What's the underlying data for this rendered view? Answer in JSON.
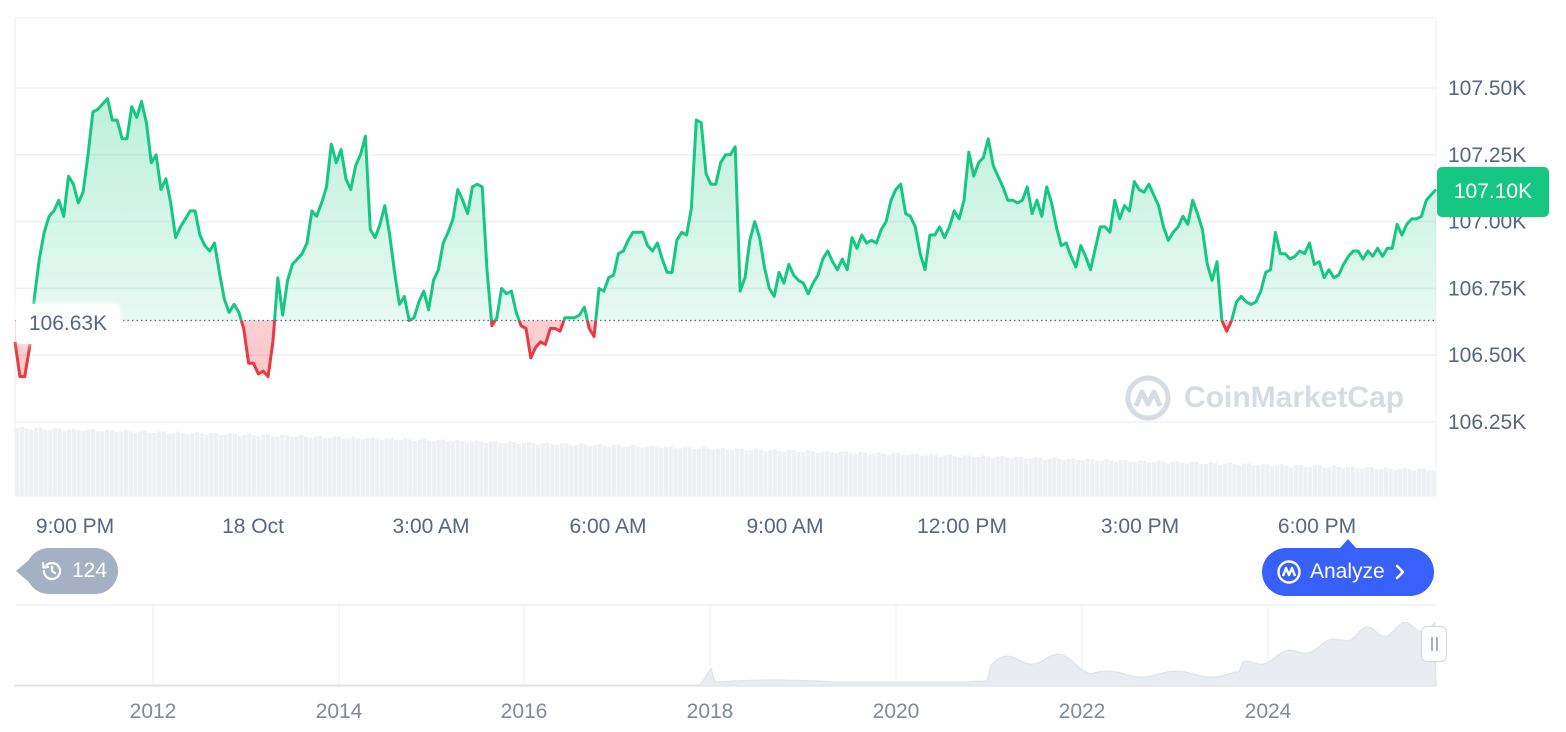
{
  "chart_data": {
    "type": "area",
    "title": "",
    "xlabel": "",
    "ylabel": "",
    "ylim": [
      106.15,
      107.75
    ],
    "y_ticks": [
      "107.50K",
      "107.25K",
      "107.00K",
      "106.75K",
      "106.50K",
      "106.25K"
    ],
    "y_tick_values": [
      107.5,
      107.25,
      107.0,
      106.75,
      106.5,
      106.25
    ],
    "x_ticks": [
      "9:00 PM",
      "18 Oct",
      "3:00 AM",
      "6:00 AM",
      "9:00 AM",
      "12:00 PM",
      "3:00 PM",
      "6:00 PM"
    ],
    "reference_price": 106.63,
    "reference_label": "106.63K",
    "current_price": 107.1,
    "current_label": "107.10K",
    "colors": {
      "up": "#16c784",
      "down": "#ea3943",
      "grid": "#eff2f5",
      "badge": "#16c784"
    },
    "grid": true,
    "volume_bars": "light gray histogram under price, slowly decreasing",
    "series": [
      {
        "values": [
          106.55,
          106.42,
          106.42,
          106.53,
          106.72,
          106.86,
          106.96,
          107.02,
          107.04,
          107.08,
          107.02,
          107.17,
          107.14,
          107.07,
          107.11,
          107.25,
          107.41,
          107.42,
          107.44,
          107.46,
          107.38,
          107.38,
          107.31,
          107.31,
          107.43,
          107.39,
          107.45,
          107.37,
          107.22,
          107.25,
          107.12,
          107.16,
          107.07,
          106.94,
          106.98,
          107.01,
          107.04,
          107.04,
          106.95,
          106.91,
          106.89,
          106.92,
          106.81,
          106.71,
          106.66,
          106.69,
          106.66,
          106.6,
          106.47,
          106.47,
          106.43,
          106.44,
          106.42,
          106.55,
          106.79,
          106.65,
          106.78,
          106.84,
          106.86,
          106.88,
          106.92,
          107.04,
          107.02,
          107.07,
          107.13,
          107.29,
          107.22,
          107.27,
          107.16,
          107.12,
          107.21,
          107.25,
          107.32,
          106.97,
          106.94,
          106.99,
          107.06,
          106.95,
          106.81,
          106.69,
          106.72,
          106.63,
          106.64,
          106.7,
          106.74,
          106.67,
          106.78,
          106.82,
          106.92,
          106.96,
          107.01,
          107.12,
          107.08,
          107.03,
          107.13,
          107.14,
          107.13,
          106.82,
          106.61,
          106.64,
          106.75,
          106.73,
          106.74,
          106.66,
          106.61,
          106.6,
          106.49,
          106.53,
          106.55,
          106.54,
          106.6,
          106.6,
          106.59,
          106.64,
          106.64,
          106.64,
          106.65,
          106.68,
          106.6,
          106.57,
          106.75,
          106.74,
          106.79,
          106.8,
          106.88,
          106.89,
          106.93,
          106.96,
          106.96,
          106.96,
          106.91,
          106.89,
          106.92,
          106.86,
          106.81,
          106.81,
          106.93,
          106.96,
          106.95,
          107.05,
          107.38,
          107.37,
          107.18,
          107.14,
          107.14,
          107.22,
          107.25,
          107.25,
          107.28,
          106.74,
          106.79,
          106.93,
          107.0,
          106.94,
          106.83,
          106.75,
          106.72,
          106.81,
          106.77,
          106.84,
          106.8,
          106.78,
          106.77,
          106.73,
          106.77,
          106.8,
          106.86,
          106.89,
          106.85,
          106.82,
          106.86,
          106.82,
          106.94,
          106.9,
          106.95,
          106.92,
          106.93,
          106.92,
          106.97,
          107.0,
          107.08,
          107.12,
          107.14,
          107.03,
          107.02,
          106.98,
          106.88,
          106.82,
          106.95,
          106.95,
          106.98,
          106.94,
          106.98,
          107.04,
          107.01,
          107.08,
          107.26,
          107.17,
          107.22,
          107.24,
          107.31,
          107.21,
          107.17,
          107.13,
          107.08,
          107.08,
          107.07,
          107.08,
          107.13,
          107.03,
          107.08,
          107.02,
          107.13,
          107.07,
          106.98,
          106.91,
          106.92,
          106.87,
          106.83,
          106.91,
          106.87,
          106.82,
          106.9,
          106.98,
          106.98,
          106.96,
          107.08,
          107.01,
          107.06,
          107.04,
          107.15,
          107.12,
          107.11,
          107.14,
          107.1,
          107.06,
          106.98,
          106.93,
          106.96,
          106.98,
          107.02,
          106.99,
          107.08,
          107.03,
          106.97,
          106.84,
          106.78,
          106.85,
          106.63,
          106.59,
          106.63,
          106.7,
          106.72,
          106.7,
          106.69,
          106.7,
          106.74,
          106.81,
          106.82,
          106.96,
          106.88,
          106.88,
          106.86,
          106.87,
          106.89,
          106.88,
          106.92,
          106.84,
          106.85,
          106.79,
          106.82,
          106.79,
          106.8,
          106.84,
          106.87,
          106.89,
          106.89,
          106.86,
          106.89,
          106.87,
          106.9,
          106.87,
          106.9,
          106.9,
          106.99,
          106.95,
          106.99,
          107.01,
          107.01,
          107.02,
          107.08,
          107.1,
          107.12
        ]
      }
    ],
    "navigator": {
      "x_ticks": [
        "2012",
        "2014",
        "2016",
        "2018",
        "2020",
        "2022",
        "2024"
      ]
    }
  },
  "controls": {
    "history_count": "124",
    "analyze_label": "Analyze"
  },
  "watermark": "CoinMarketCap",
  "icons": {
    "history": "history-clock-icon",
    "analyze": "coinmarketcap-logo-icon",
    "chevron": "chevron-right-icon",
    "handle": "range-handle-icon"
  }
}
